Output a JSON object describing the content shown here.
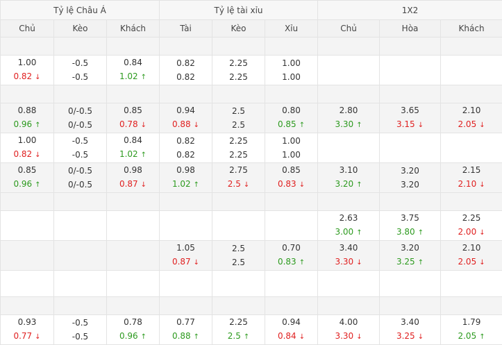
{
  "groups": [
    "Tỷ lệ Châu Á",
    "Tỷ lệ tài xỉu",
    "1X2"
  ],
  "columns": [
    "Chủ",
    "Kèo",
    "Khách",
    "Tài",
    "Kèo",
    "Xỉu",
    "Chủ",
    "Hòa",
    "Khách"
  ],
  "rows": [
    {
      "type": "empty"
    },
    {
      "type": "data",
      "cells": [
        {
          "top": "1.00",
          "bottom": "0.82",
          "dir": "down"
        },
        {
          "top": "-0.5",
          "bottom": "-0.5"
        },
        {
          "top": "0.84",
          "bottom": "1.02",
          "dir": "up"
        },
        {
          "top": "0.82",
          "bottom": "0.82"
        },
        {
          "top": "2.25",
          "bottom": "2.25"
        },
        {
          "top": "1.00",
          "bottom": "1.00"
        },
        {},
        {},
        {}
      ]
    },
    {
      "type": "empty"
    },
    {
      "type": "data",
      "cells": [
        {
          "top": "0.88",
          "bottom": "0.96",
          "dir": "up"
        },
        {
          "top": "0/-0.5",
          "bottom": "0/-0.5"
        },
        {
          "top": "0.85",
          "bottom": "0.78",
          "dir": "down"
        },
        {
          "top": "0.94",
          "bottom": "0.88",
          "dir": "down"
        },
        {
          "top": "2.5",
          "bottom": "2.5"
        },
        {
          "top": "0.80",
          "bottom": "0.85",
          "dir": "up"
        },
        {
          "top": "2.80",
          "bottom": "3.30",
          "dir": "up"
        },
        {
          "top": "3.65",
          "bottom": "3.15",
          "dir": "down"
        },
        {
          "top": "2.10",
          "bottom": "2.05",
          "dir": "down"
        }
      ]
    },
    {
      "type": "data",
      "cells": [
        {
          "top": "1.00",
          "bottom": "0.82",
          "dir": "down"
        },
        {
          "top": "-0.5",
          "bottom": "-0.5"
        },
        {
          "top": "0.84",
          "bottom": "1.02",
          "dir": "up"
        },
        {
          "top": "0.82",
          "bottom": "0.82"
        },
        {
          "top": "2.25",
          "bottom": "2.25"
        },
        {
          "top": "1.00",
          "bottom": "1.00"
        },
        {},
        {},
        {}
      ]
    },
    {
      "type": "data",
      "cells": [
        {
          "top": "0.85",
          "bottom": "0.96",
          "dir": "up"
        },
        {
          "top": "0/-0.5",
          "bottom": "0/-0.5"
        },
        {
          "top": "0.98",
          "bottom": "0.87",
          "dir": "down"
        },
        {
          "top": "0.98",
          "bottom": "1.02",
          "dir": "up"
        },
        {
          "top": "2.75",
          "bottom": "2.5",
          "dir": "down"
        },
        {
          "top": "0.85",
          "bottom": "0.83",
          "dir": "down"
        },
        {
          "top": "3.10",
          "bottom": "3.20",
          "dir": "up"
        },
        {
          "top": "3.20",
          "bottom": "3.20"
        },
        {
          "top": "2.15",
          "bottom": "2.10",
          "dir": "down"
        }
      ]
    },
    {
      "type": "empty"
    },
    {
      "type": "data",
      "cells": [
        {},
        {},
        {},
        {},
        {},
        {},
        {
          "top": "2.63",
          "bottom": "3.00",
          "dir": "up"
        },
        {
          "top": "3.75",
          "bottom": "3.80",
          "dir": "up"
        },
        {
          "top": "2.25",
          "bottom": "2.00",
          "dir": "down"
        }
      ]
    },
    {
      "type": "data",
      "cells": [
        {},
        {},
        {},
        {
          "top": "1.05",
          "bottom": "0.87",
          "dir": "down"
        },
        {
          "top": "2.5",
          "bottom": "2.5"
        },
        {
          "top": "0.70",
          "bottom": "0.83",
          "dir": "up"
        },
        {
          "top": "3.40",
          "bottom": "3.30",
          "dir": "down"
        },
        {
          "top": "3.20",
          "bottom": "3.25",
          "dir": "up"
        },
        {
          "top": "2.10",
          "bottom": "2.05",
          "dir": "down"
        }
      ]
    },
    {
      "type": "blank"
    },
    {
      "type": "empty"
    },
    {
      "type": "data",
      "cells": [
        {
          "top": "0.93",
          "bottom": "0.77",
          "dir": "down"
        },
        {
          "top": "-0.5",
          "bottom": "-0.5"
        },
        {
          "top": "0.78",
          "bottom": "0.96",
          "dir": "up"
        },
        {
          "top": "0.77",
          "bottom": "0.88",
          "dir": "up"
        },
        {
          "top": "2.25",
          "bottom": "2.5",
          "dir": "up"
        },
        {
          "top": "0.94",
          "bottom": "0.84",
          "dir": "down"
        },
        {
          "top": "4.00",
          "bottom": "3.30",
          "dir": "down"
        },
        {
          "top": "3.40",
          "bottom": "3.25",
          "dir": "down"
        },
        {
          "top": "1.79",
          "bottom": "2.05",
          "dir": "up"
        }
      ]
    }
  ],
  "colors": {
    "up": "#2c9a1e",
    "down": "#e02020"
  },
  "icons": {
    "up": "arrow-up-icon",
    "down": "arrow-down-icon"
  }
}
